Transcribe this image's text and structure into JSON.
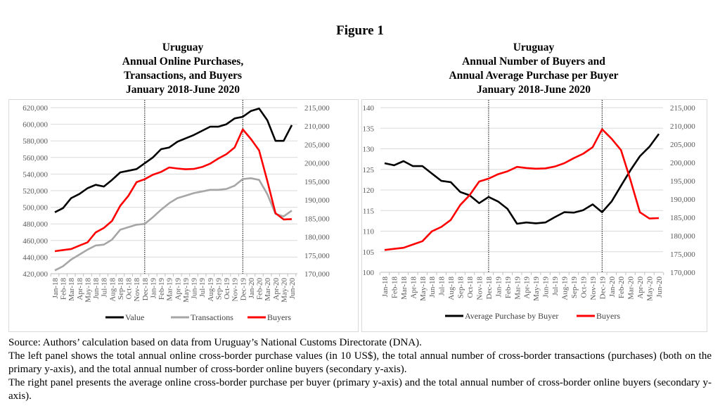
{
  "figure_title": "Figure 1",
  "left_panel": {
    "title_lines": [
      "Uruguay",
      "Annual Online Purchases,",
      "Transactions, and Buyers",
      "January 2018-June 2020"
    ]
  },
  "right_panel": {
    "title_lines": [
      "Uruguay",
      "Annual Number of Buyers and",
      "Annual Average Purchase per Buyer",
      "January 2018-June 2020"
    ]
  },
  "source_lines": [
    "Source: Authors’ calculation based on data from Uruguay’s National Customs Directorate (DNA).",
    "The left panel shows the total annual online cross-border purchase values (in 10 US$), the total annual number of cross-border transactions (purchases) (both on the primary y-axis), and the total annual number of cross-border online buyers (secondary y-axis).",
    "The right panel presents the average online cross-border purchase per buyer (primary y-axis) and the total annual number of cross-border online buyers (secondary y-axis)."
  ],
  "chart_data": [
    {
      "type": "line",
      "title": "Uruguay Annual Online Purchases, Transactions, and Buyers January 2018-June 2020",
      "categories": [
        "Jan-18",
        "Feb-18",
        "Mar-18",
        "Apr-18",
        "May-18",
        "Jun-18",
        "Jul-18",
        "Aug-18",
        "Sep-18",
        "Oct-18",
        "Nov-18",
        "Dec-18",
        "Jan-19",
        "Feb-19",
        "Mar-19",
        "Apr-19",
        "May-19",
        "Jun-19",
        "Jul-19",
        "Aug-19",
        "Sep-19",
        "Oct-19",
        "Nov-19",
        "Dec-19",
        "Jan-20",
        "Feb-20",
        "Mar-20",
        "Apr-20",
        "May-20",
        "Jun-20"
      ],
      "y_primary": {
        "ylim": [
          420000,
          620000
        ],
        "ticks": [
          "420,000",
          "440,000",
          "460,000",
          "480,000",
          "500,000",
          "520,000",
          "540,000",
          "560,000",
          "580,000",
          "600,000",
          "620,000"
        ],
        "tick_values": [
          420000,
          440000,
          460000,
          480000,
          500000,
          520000,
          540000,
          560000,
          580000,
          600000,
          620000
        ]
      },
      "y_secondary": {
        "ylim": [
          170000,
          215000
        ],
        "ticks": [
          "170,000",
          "175,000",
          "180,000",
          "185,000",
          "190,000",
          "195,000",
          "200,000",
          "205,000",
          "210,000",
          "215,000"
        ],
        "tick_values": [
          170000,
          175000,
          180000,
          185000,
          190000,
          195000,
          200000,
          205000,
          210000,
          215000
        ]
      },
      "vertical_markers": [
        "Dec-18",
        "Dec-19"
      ],
      "grid": true,
      "legend_position": "bottom",
      "series": [
        {
          "name": "Value",
          "axis": "primary",
          "color": "#000000",
          "values": [
            494000,
            499000,
            511000,
            516000,
            523000,
            527000,
            525000,
            533000,
            542000,
            544000,
            546000,
            553000,
            560000,
            570000,
            572000,
            579000,
            583000,
            587000,
            592000,
            597000,
            597000,
            600000,
            607000,
            609000,
            616000,
            619000,
            605000,
            580000,
            580000,
            599000
          ]
        },
        {
          "name": "Transactions",
          "axis": "primary",
          "color": "#a6a6a6",
          "values": [
            424000,
            429000,
            437000,
            443000,
            449000,
            454000,
            455000,
            461000,
            473000,
            476000,
            479000,
            480000,
            488000,
            497000,
            505000,
            511000,
            514000,
            517000,
            519000,
            521000,
            521000,
            522000,
            526000,
            534000,
            535000,
            533000,
            516000,
            492000,
            489000,
            496000
          ]
        },
        {
          "name": "Buyers",
          "axis": "secondary",
          "color": "#ff0000",
          "values": [
            176100,
            176400,
            176700,
            177600,
            178500,
            181200,
            182400,
            184300,
            188400,
            191100,
            194800,
            195600,
            196800,
            197600,
            198800,
            198500,
            198300,
            198400,
            198900,
            199800,
            201200,
            202400,
            204200,
            209100,
            206500,
            203400,
            195200,
            186400,
            184700,
            184800
          ]
        }
      ]
    },
    {
      "type": "line",
      "title": "Uruguay Annual Number of Buyers and Annual Average Purchase per Buyer January 2018-June 2020",
      "categories": [
        "Jan-18",
        "Feb-18",
        "Mar-18",
        "Apr-18",
        "May-18",
        "Jun-18",
        "Jul-18",
        "Aug-18",
        "Sep-18",
        "Oct-18",
        "Nov-18",
        "Dec-18",
        "Jan-19",
        "Feb-19",
        "Mar-19",
        "Apr-19",
        "May-19",
        "Jun-19",
        "Jul-19",
        "Aug-19",
        "Sep-19",
        "Oct-19",
        "Nov-19",
        "Dec-19",
        "Jan-20",
        "Feb-20",
        "Mar-20",
        "Apr-20",
        "May-20",
        "Jun-20"
      ],
      "y_primary": {
        "ylim": [
          100,
          140
        ],
        "ticks": [
          "100",
          "105",
          "110",
          "115",
          "120",
          "125",
          "130",
          "135",
          "140"
        ],
        "tick_values": [
          100,
          105,
          110,
          115,
          120,
          125,
          130,
          135,
          140
        ]
      },
      "y_secondary": {
        "ylim": [
          170000,
          215000
        ],
        "ticks": [
          "170,000",
          "175,000",
          "180,000",
          "185,000",
          "190,000",
          "195,000",
          "200,000",
          "205,000",
          "210,000",
          "215,000"
        ],
        "tick_values": [
          170000,
          175000,
          180000,
          185000,
          190000,
          195000,
          200000,
          205000,
          210000,
          215000
        ]
      },
      "vertical_markers": [
        "Dec-18",
        "Dec-19"
      ],
      "grid": true,
      "legend_position": "bottom",
      "series": [
        {
          "name": "Average Purchase by Buyer",
          "axis": "primary",
          "color": "#000000",
          "values": [
            126.5,
            126.0,
            127.0,
            125.8,
            125.8,
            124.0,
            122.2,
            121.9,
            119.5,
            118.7,
            116.8,
            118.3,
            117.2,
            115.4,
            111.8,
            112.1,
            111.9,
            112.1,
            113.4,
            114.6,
            114.5,
            115.1,
            116.5,
            114.6,
            117.2,
            121.0,
            124.8,
            128.2,
            130.5,
            133.6
          ]
        },
        {
          "name": "Buyers",
          "axis": "secondary",
          "color": "#ff0000",
          "values": [
            176100,
            176400,
            176700,
            177600,
            178500,
            181200,
            182400,
            184300,
            188400,
            191100,
            194800,
            195600,
            196800,
            197600,
            198800,
            198500,
            198300,
            198400,
            198900,
            199800,
            201200,
            202400,
            204200,
            209100,
            206500,
            203400,
            195200,
            186400,
            184700,
            184800
          ]
        }
      ]
    }
  ]
}
